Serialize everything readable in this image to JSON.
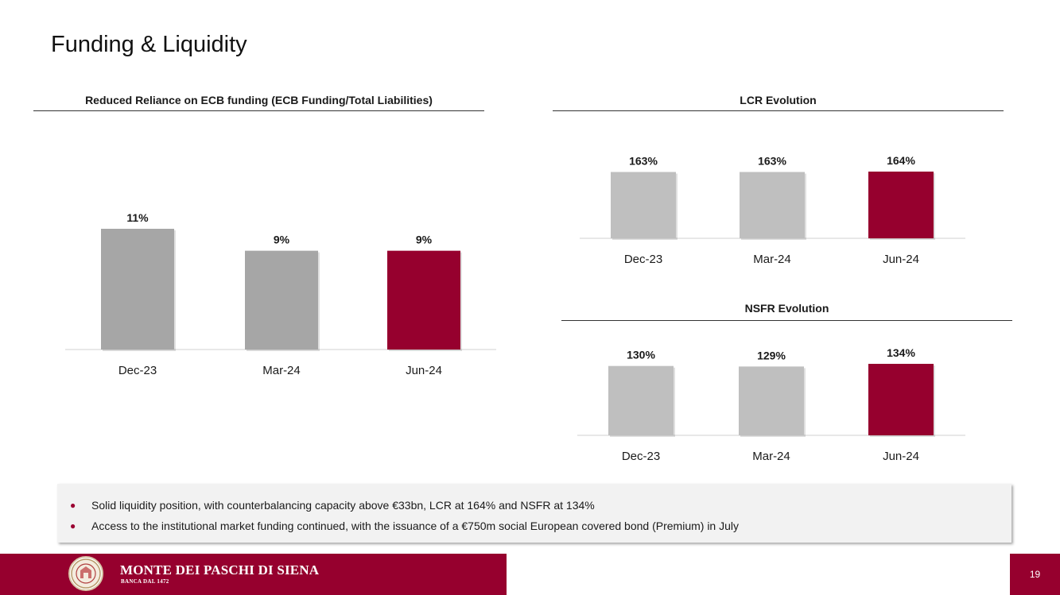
{
  "page": {
    "title": "Funding & Liquidity",
    "page_number": "19"
  },
  "colors": {
    "accent": "#96002e",
    "bar_gray_dark": "#a6a6a6",
    "bar_gray_light": "#bfbfbf",
    "axis": "#d9d9d9"
  },
  "chart_data": [
    {
      "id": "ecb",
      "type": "bar",
      "title": "Reduced Reliance on ECB funding (ECB Funding/Total Liabilities)",
      "categories": [
        "Dec-23",
        "Mar-24",
        "Jun-24"
      ],
      "values": [
        11,
        9,
        9
      ],
      "data_labels": [
        "11%",
        "9%",
        "9%"
      ],
      "highlight_index": 2,
      "ylim": [
        0,
        11
      ]
    },
    {
      "id": "lcr",
      "type": "bar",
      "title": "LCR Evolution",
      "categories": [
        "Dec-23",
        "Mar-24",
        "Jun-24"
      ],
      "values": [
        163,
        163,
        164
      ],
      "data_labels": [
        "163%",
        "163%",
        "164%"
      ],
      "highlight_index": 2,
      "ylim": [
        0,
        164
      ]
    },
    {
      "id": "nsfr",
      "type": "bar",
      "title": "NSFR Evolution",
      "categories": [
        "Dec-23",
        "Mar-24",
        "Jun-24"
      ],
      "values": [
        130,
        129,
        134
      ],
      "data_labels": [
        "130%",
        "129%",
        "134%"
      ],
      "highlight_index": 2,
      "ylim": [
        0,
        134
      ]
    }
  ],
  "notes": [
    "Solid liquidity position, with counterbalancing capacity above €33bn, LCR at 164% and NSFR at 134%",
    "Access to the institutional market funding continued, with the issuance of a €750m social European covered bond (Premium) in July"
  ],
  "footer": {
    "brand_name": "MONTE DEI PASCHI DI SIENA",
    "brand_sub": "BANCA DAL 1472",
    "logo_icon": "bank-seal-icon"
  }
}
